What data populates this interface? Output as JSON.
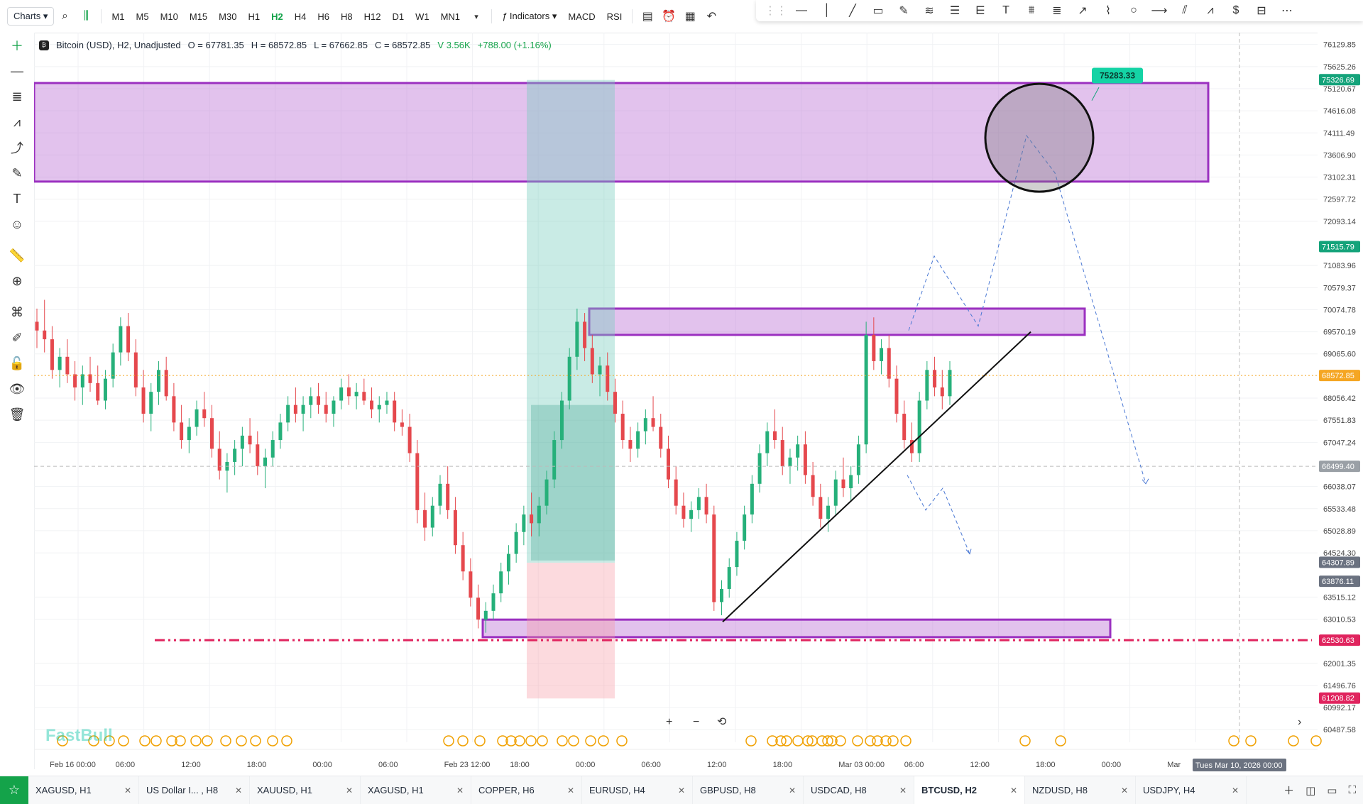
{
  "toolbar": {
    "charts_label": "Charts",
    "timeframes": [
      "M1",
      "M5",
      "M10",
      "M15",
      "M30",
      "H1",
      "H2",
      "H4",
      "H6",
      "H8",
      "H12",
      "D1",
      "W1",
      "MN1"
    ],
    "active_timeframe": "H2",
    "indicators_label": "Indicators",
    "macd_label": "MACD",
    "rsi_label": "RSI"
  },
  "symbol": {
    "name": "Bitcoin (USD), H2, Unadjusted",
    "open": "O = 67781.35",
    "high": "H = 68572.85",
    "low": "L = 67662.85",
    "close": "C = 68572.85",
    "volume": "V 3.56K",
    "change": "+788.00 (+1.16%)"
  },
  "watermark": "FastBull",
  "chart_data": {
    "type": "candlestick",
    "price_axis_ticks": [
      "76129.85",
      "75625.26",
      "75120.67",
      "74616.08",
      "74111.49",
      "73606.90",
      "73102.31",
      "72597.72",
      "72093.14",
      "71083.96",
      "70579.37",
      "70074.78",
      "69570.19",
      "69065.60",
      "68056.42",
      "67551.83",
      "67047.24",
      "66038.07",
      "65533.48",
      "65028.89",
      "64524.30",
      "63515.12",
      "63010.53",
      "62001.35",
      "61496.76",
      "60992.17",
      "60487.58"
    ],
    "price_labels": [
      {
        "price": 75326.69,
        "text": "75326.69",
        "color": "#14a37a"
      },
      {
        "price": 71515.79,
        "text": "71515.79",
        "color": "#14a37a"
      },
      {
        "price": 68572.85,
        "text": "68572.85",
        "color": "#f5a623"
      },
      {
        "price": 66499.4,
        "text": "66499.40",
        "color": "#9aa0a6"
      },
      {
        "price": 64307.89,
        "text": "64307.89",
        "color": "#6b7280"
      },
      {
        "price": 63876.11,
        "text": "63876.11",
        "color": "#6b7280"
      },
      {
        "price": 62530.63,
        "text": "62530.63",
        "color": "#e0245e"
      },
      {
        "price": 61208.82,
        "text": "61208.82",
        "color": "#e0245e"
      }
    ],
    "time_axis_ticks": [
      "Feb 16 00:00",
      "06:00",
      "12:00",
      "18:00",
      "00:00",
      "06:00",
      "Feb 23 12:00",
      "18:00",
      "00:00",
      "06:00",
      "12:00",
      "18:00",
      "Mar 03 00:00",
      "06:00",
      "12:00",
      "18:00",
      "00:00",
      "Mar"
    ],
    "crosshair_time_label": "Tues Mar 10, 2026 00:00",
    "target_label": "75283.33",
    "ylim": [
      60200,
      76400
    ],
    "candles": [
      [
        69800,
        70100,
        69200,
        69600
      ],
      [
        69600,
        70300,
        69100,
        69400
      ],
      [
        69400,
        69700,
        68500,
        68700
      ],
      [
        68700,
        69200,
        68300,
        69000
      ],
      [
        69000,
        69400,
        68400,
        68600
      ],
      [
        68600,
        68900,
        68000,
        68300
      ],
      [
        68300,
        68800,
        67900,
        68600
      ],
      [
        68600,
        69000,
        68200,
        68400
      ],
      [
        68400,
        68800,
        67900,
        68000
      ],
      [
        68000,
        68700,
        67800,
        68500
      ],
      [
        68500,
        69300,
        68300,
        69100
      ],
      [
        69100,
        69900,
        68800,
        69700
      ],
      [
        69700,
        70000,
        68900,
        69100
      ],
      [
        69100,
        69400,
        68100,
        68300
      ],
      [
        68300,
        68700,
        67500,
        67700
      ],
      [
        67700,
        68400,
        67300,
        68200
      ],
      [
        68200,
        68900,
        67900,
        68700
      ],
      [
        68700,
        69000,
        68000,
        68100
      ],
      [
        68100,
        68400,
        67300,
        67500
      ],
      [
        67500,
        67900,
        66900,
        67100
      ],
      [
        67100,
        67600,
        66800,
        67400
      ],
      [
        67400,
        68000,
        67200,
        67800
      ],
      [
        67800,
        68200,
        67400,
        67600
      ],
      [
        67600,
        67900,
        66700,
        66900
      ],
      [
        66900,
        67300,
        66200,
        66400
      ],
      [
        66400,
        66800,
        65900,
        66600
      ],
      [
        66600,
        67100,
        66300,
        66900
      ],
      [
        66900,
        67400,
        66500,
        67200
      ],
      [
        67200,
        67600,
        66800,
        67000
      ],
      [
        67000,
        67300,
        66300,
        66500
      ],
      [
        66500,
        66900,
        66000,
        66700
      ],
      [
        66700,
        67300,
        66500,
        67100
      ],
      [
        67100,
        67700,
        66900,
        67500
      ],
      [
        67500,
        68100,
        67300,
        67900
      ],
      [
        67900,
        68300,
        67500,
        67700
      ],
      [
        67700,
        68100,
        67300,
        67900
      ],
      [
        67900,
        68300,
        67600,
        68100
      ],
      [
        68100,
        68400,
        67700,
        67900
      ],
      [
        67900,
        68200,
        67500,
        67700
      ],
      [
        67700,
        68100,
        67400,
        68000
      ],
      [
        68000,
        68500,
        67800,
        68300
      ],
      [
        68300,
        68600,
        67900,
        68100
      ],
      [
        68100,
        68400,
        67800,
        68200
      ],
      [
        68200,
        68500,
        67900,
        68000
      ],
      [
        68000,
        68300,
        67600,
        67800
      ],
      [
        67800,
        68100,
        67500,
        67900
      ],
      [
        67900,
        68200,
        67700,
        68000
      ],
      [
        68000,
        68200,
        67300,
        67500
      ],
      [
        67500,
        67800,
        67200,
        67400
      ],
      [
        67400,
        67700,
        66600,
        66800
      ],
      [
        66800,
        67100,
        65200,
        65500
      ],
      [
        65500,
        65900,
        64800,
        65100
      ],
      [
        65100,
        65800,
        64900,
        65600
      ],
      [
        65600,
        66300,
        65400,
        66100
      ],
      [
        66100,
        66500,
        65300,
        65500
      ],
      [
        65500,
        65800,
        64500,
        64700
      ],
      [
        64700,
        65000,
        63900,
        64100
      ],
      [
        64100,
        64400,
        63300,
        63500
      ],
      [
        63500,
        63800,
        62800,
        63000
      ],
      [
        63000,
        63400,
        62700,
        63200
      ],
      [
        63200,
        63800,
        63000,
        63600
      ],
      [
        63600,
        64300,
        63400,
        64100
      ],
      [
        64100,
        64700,
        63800,
        64500
      ],
      [
        64500,
        65200,
        64300,
        65000
      ],
      [
        65000,
        65600,
        64700,
        65400
      ],
      [
        65400,
        65900,
        64900,
        65200
      ],
      [
        65200,
        65800,
        64900,
        65600
      ],
      [
        65600,
        66400,
        65400,
        66200
      ],
      [
        66200,
        67300,
        66000,
        67100
      ],
      [
        67100,
        68200,
        66900,
        68000
      ],
      [
        68000,
        69200,
        67800,
        69000
      ],
      [
        69000,
        70100,
        68700,
        69800
      ],
      [
        69800,
        70000,
        68900,
        69200
      ],
      [
        69200,
        69500,
        68400,
        68600
      ],
      [
        68600,
        69000,
        68100,
        68800
      ],
      [
        68800,
        69100,
        68000,
        68200
      ],
      [
        68200,
        68500,
        67500,
        67700
      ],
      [
        67700,
        68000,
        66900,
        67100
      ],
      [
        67100,
        67400,
        66600,
        66900
      ],
      [
        66900,
        67500,
        66700,
        67300
      ],
      [
        67300,
        67800,
        67000,
        67600
      ],
      [
        67600,
        68100,
        67300,
        67400
      ],
      [
        67400,
        67700,
        66700,
        66900
      ],
      [
        66900,
        67200,
        66000,
        66200
      ],
      [
        66200,
        66500,
        65400,
        65600
      ],
      [
        65600,
        65900,
        65100,
        65300
      ],
      [
        65300,
        65700,
        65000,
        65500
      ],
      [
        65500,
        66000,
        65300,
        65800
      ],
      [
        65800,
        66100,
        65200,
        65400
      ],
      [
        65400,
        65600,
        63200,
        63400
      ],
      [
        63400,
        63900,
        63100,
        63700
      ],
      [
        63700,
        64400,
        63500,
        64200
      ],
      [
        64200,
        65000,
        64000,
        64800
      ],
      [
        64800,
        65600,
        64600,
        65400
      ],
      [
        65400,
        66300,
        65200,
        66100
      ],
      [
        66100,
        67000,
        65900,
        66800
      ],
      [
        66800,
        67500,
        66500,
        67300
      ],
      [
        67300,
        67800,
        66900,
        67100
      ],
      [
        67100,
        67400,
        66300,
        66500
      ],
      [
        66500,
        66900,
        66100,
        66700
      ],
      [
        66700,
        67200,
        66400,
        67000
      ],
      [
        67000,
        67300,
        66100,
        66300
      ],
      [
        66300,
        66600,
        65600,
        65800
      ],
      [
        65800,
        66100,
        65100,
        65300
      ],
      [
        65300,
        65800,
        65000,
        65600
      ],
      [
        65600,
        66400,
        65400,
        66200
      ],
      [
        66200,
        66700,
        65800,
        66000
      ],
      [
        66000,
        66500,
        65700,
        66300
      ],
      [
        66300,
        67200,
        66100,
        67000
      ],
      [
        67000,
        69800,
        66800,
        69500
      ],
      [
        69500,
        69900,
        68700,
        68900
      ],
      [
        68900,
        69400,
        68600,
        69200
      ],
      [
        69200,
        69500,
        68300,
        68500
      ],
      [
        68500,
        68800,
        67500,
        67700
      ],
      [
        67700,
        68000,
        66900,
        67100
      ],
      [
        67100,
        67500,
        66600,
        66800
      ],
      [
        66800,
        68200,
        66600,
        68000
      ],
      [
        68000,
        68900,
        67800,
        68700
      ],
      [
        68700,
        69000,
        68100,
        68300
      ],
      [
        68300,
        68700,
        67800,
        68100
      ],
      [
        68100,
        68900,
        67900,
        68700
      ]
    ]
  },
  "tabs": [
    {
      "label": "XAGUSD, H1",
      "active": false
    },
    {
      "label": "US Dollar I... , H8",
      "active": false
    },
    {
      "label": "XAUUSD, H1",
      "active": false
    },
    {
      "label": "XAGUSD, H1",
      "active": false
    },
    {
      "label": "COPPER, H6",
      "active": false
    },
    {
      "label": "EURUSD, H4",
      "active": false
    },
    {
      "label": "GBPUSD, H8",
      "active": false
    },
    {
      "label": "USDCAD, H8",
      "active": false
    },
    {
      "label": "BTCUSD, H2",
      "active": true
    },
    {
      "label": "NZDUSD, H8",
      "active": false
    },
    {
      "label": "USDJPY, H4",
      "active": false
    }
  ]
}
